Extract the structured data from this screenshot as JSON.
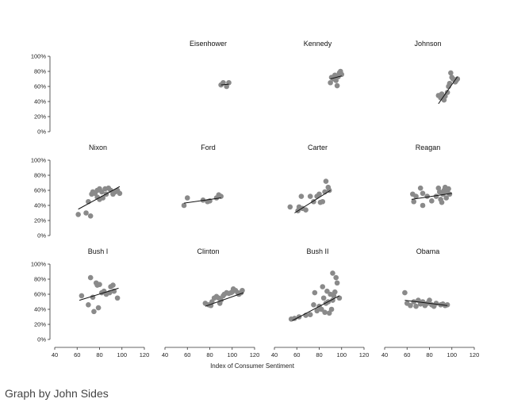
{
  "chart_data": {
    "type": "scatter",
    "layout": "small-multiples",
    "xlabel": "Index of Consumer Sentiment",
    "ylabel": "",
    "xlim": [
      40,
      120
    ],
    "ylim": [
      0,
      100
    ],
    "x_ticks": [
      40,
      60,
      80,
      100,
      120
    ],
    "y_ticks": [
      0,
      20,
      40,
      60,
      80,
      100
    ],
    "y_tick_suffix": "%",
    "point_color": "#8a8a8a",
    "line_color": "#111111",
    "panels": [
      {
        "name": "Eisenhower",
        "points": [
          [
            90,
            62
          ],
          [
            92,
            65
          ],
          [
            95,
            60
          ],
          [
            97,
            65
          ]
        ],
        "trend": [
          [
            90,
            62
          ],
          [
            97,
            63
          ]
        ]
      },
      {
        "name": "Kennedy",
        "points": [
          [
            90,
            65
          ],
          [
            91,
            72
          ],
          [
            93,
            70
          ],
          [
            94,
            75
          ],
          [
            95,
            68
          ],
          [
            96,
            61
          ],
          [
            97,
            73
          ],
          [
            98,
            78
          ],
          [
            99,
            80
          ],
          [
            100,
            76
          ]
        ],
        "trend": [
          [
            90,
            70
          ],
          [
            100,
            74
          ]
        ]
      },
      {
        "name": "Johnson",
        "points": [
          [
            88,
            48
          ],
          [
            90,
            45
          ],
          [
            91,
            50
          ],
          [
            93,
            42
          ],
          [
            94,
            47
          ],
          [
            96,
            52
          ],
          [
            97,
            60
          ],
          [
            98,
            64
          ],
          [
            99,
            78
          ],
          [
            100,
            72
          ],
          [
            101,
            70
          ],
          [
            103,
            66
          ],
          [
            104,
            68
          ],
          [
            105,
            70
          ]
        ],
        "trend": [
          [
            88,
            37
          ],
          [
            105,
            73
          ]
        ]
      },
      {
        "name": "Nixon",
        "points": [
          [
            61,
            28
          ],
          [
            68,
            30
          ],
          [
            72,
            26
          ],
          [
            70,
            45
          ],
          [
            73,
            55
          ],
          [
            74,
            58
          ],
          [
            76,
            56
          ],
          [
            78,
            60
          ],
          [
            78,
            51
          ],
          [
            80,
            62
          ],
          [
            80,
            48
          ],
          [
            82,
            58
          ],
          [
            83,
            50
          ],
          [
            85,
            62
          ],
          [
            86,
            55
          ],
          [
            88,
            63
          ],
          [
            90,
            60
          ],
          [
            92,
            55
          ],
          [
            94,
            58
          ],
          [
            96,
            60
          ],
          [
            98,
            56
          ]
        ],
        "trend": [
          [
            61,
            35
          ],
          [
            98,
            65
          ]
        ]
      },
      {
        "name": "Ford",
        "points": [
          [
            57,
            40
          ],
          [
            60,
            50
          ],
          [
            74,
            47
          ],
          [
            78,
            45
          ],
          [
            80,
            46
          ],
          [
            86,
            50
          ],
          [
            88,
            54
          ],
          [
            90,
            52
          ]
        ],
        "trend": [
          [
            57,
            43
          ],
          [
            90,
            50
          ]
        ]
      },
      {
        "name": "Carter",
        "points": [
          [
            54,
            38
          ],
          [
            61,
            33
          ],
          [
            62,
            38
          ],
          [
            64,
            52
          ],
          [
            65,
            36
          ],
          [
            68,
            34
          ],
          [
            72,
            52
          ],
          [
            75,
            45
          ],
          [
            78,
            52
          ],
          [
            80,
            55
          ],
          [
            81,
            44
          ],
          [
            83,
            45
          ],
          [
            85,
            58
          ],
          [
            86,
            72
          ],
          [
            88,
            64
          ],
          [
            89,
            60
          ]
        ],
        "trend": [
          [
            58,
            30
          ],
          [
            90,
            60
          ]
        ]
      },
      {
        "name": "Reagan",
        "points": [
          [
            65,
            55
          ],
          [
            66,
            45
          ],
          [
            68,
            52
          ],
          [
            72,
            63
          ],
          [
            74,
            40
          ],
          [
            74,
            56
          ],
          [
            78,
            52
          ],
          [
            82,
            46
          ],
          [
            86,
            52
          ],
          [
            88,
            63
          ],
          [
            89,
            58
          ],
          [
            90,
            48
          ],
          [
            91,
            44
          ],
          [
            92,
            55
          ],
          [
            93,
            60
          ],
          [
            94,
            64
          ],
          [
            95,
            50
          ],
          [
            96,
            58
          ],
          [
            97,
            62
          ],
          [
            98,
            55
          ]
        ],
        "trend": [
          [
            64,
            48
          ],
          [
            100,
            56
          ]
        ]
      },
      {
        "name": "Bush I",
        "points": [
          [
            64,
            58
          ],
          [
            70,
            46
          ],
          [
            72,
            82
          ],
          [
            74,
            56
          ],
          [
            75,
            37
          ],
          [
            77,
            75
          ],
          [
            78,
            72
          ],
          [
            79,
            42
          ],
          [
            80,
            73
          ],
          [
            82,
            62
          ],
          [
            84,
            64
          ],
          [
            86,
            60
          ],
          [
            89,
            62
          ],
          [
            90,
            70
          ],
          [
            92,
            72
          ],
          [
            93,
            64
          ],
          [
            96,
            55
          ]
        ],
        "trend": [
          [
            62,
            52
          ],
          [
            97,
            68
          ]
        ]
      },
      {
        "name": "Clinton",
        "points": [
          [
            76,
            48
          ],
          [
            79,
            46
          ],
          [
            81,
            45
          ],
          [
            82,
            50
          ],
          [
            84,
            55
          ],
          [
            86,
            57
          ],
          [
            88,
            55
          ],
          [
            89,
            48
          ],
          [
            90,
            52
          ],
          [
            92,
            58
          ],
          [
            93,
            60
          ],
          [
            95,
            62
          ],
          [
            97,
            61
          ],
          [
            99,
            62
          ],
          [
            100,
            63
          ],
          [
            101,
            67
          ],
          [
            103,
            65
          ],
          [
            105,
            62
          ],
          [
            106,
            60
          ],
          [
            108,
            62
          ],
          [
            109,
            65
          ]
        ],
        "trend": [
          [
            76,
            44
          ],
          [
            110,
            62
          ]
        ]
      },
      {
        "name": "Bush II",
        "points": [
          [
            55,
            27
          ],
          [
            58,
            28
          ],
          [
            62,
            30
          ],
          [
            68,
            32
          ],
          [
            72,
            33
          ],
          [
            75,
            46
          ],
          [
            76,
            62
          ],
          [
            78,
            38
          ],
          [
            80,
            44
          ],
          [
            82,
            40
          ],
          [
            83,
            70
          ],
          [
            84,
            55
          ],
          [
            85,
            36
          ],
          [
            86,
            48
          ],
          [
            87,
            64
          ],
          [
            88,
            50
          ],
          [
            89,
            35
          ],
          [
            90,
            60
          ],
          [
            91,
            40
          ],
          [
            92,
            52
          ],
          [
            92,
            88
          ],
          [
            93,
            58
          ],
          [
            94,
            63
          ],
          [
            95,
            82
          ],
          [
            96,
            75
          ],
          [
            98,
            55
          ]
        ],
        "trend": [
          [
            56,
            25
          ],
          [
            98,
            58
          ]
        ]
      },
      {
        "name": "Obama",
        "points": [
          [
            58,
            62
          ],
          [
            60,
            48
          ],
          [
            63,
            45
          ],
          [
            66,
            50
          ],
          [
            68,
            44
          ],
          [
            70,
            52
          ],
          [
            72,
            47
          ],
          [
            74,
            50
          ],
          [
            76,
            45
          ],
          [
            78,
            48
          ],
          [
            80,
            52
          ],
          [
            82,
            46
          ],
          [
            84,
            44
          ],
          [
            86,
            48
          ],
          [
            90,
            46
          ],
          [
            92,
            47
          ],
          [
            94,
            45
          ],
          [
            96,
            46
          ]
        ],
        "trend": [
          [
            58,
            52
          ],
          [
            96,
            45
          ]
        ]
      }
    ]
  },
  "footer": {
    "credit": "Graph by John Sides"
  }
}
